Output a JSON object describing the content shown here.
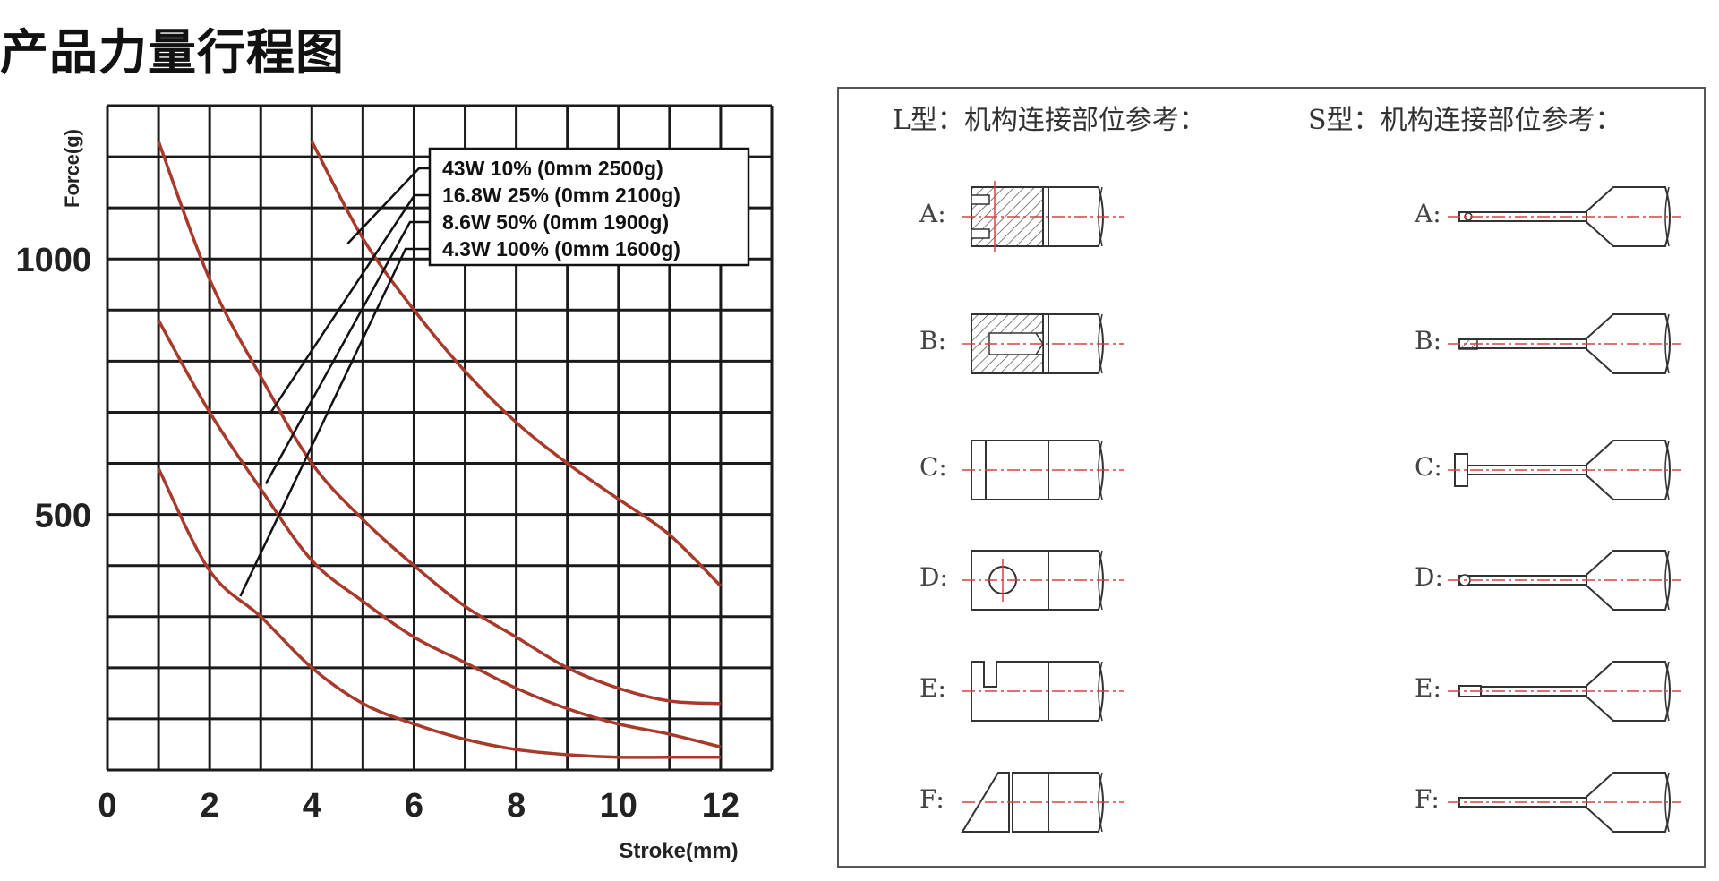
{
  "page_title": "产品力量行程图",
  "chart_data": {
    "type": "line",
    "xlabel": "Stroke(mm)",
    "ylabel": "Force(g)",
    "xlim": [
      0,
      13
    ],
    "ylim": [
      0,
      1300
    ],
    "x_ticks": [
      {
        "value": 0,
        "label": "0"
      },
      {
        "value": 2,
        "label": "2"
      },
      {
        "value": 4,
        "label": "4"
      },
      {
        "value": 6,
        "label": "6"
      },
      {
        "value": 8,
        "label": "8"
      },
      {
        "value": 10,
        "label": "10"
      },
      {
        "value": 12,
        "label": "12"
      }
    ],
    "y_ticks": [
      {
        "value": 500,
        "label": "500"
      },
      {
        "value": 1000,
        "label": "1000"
      }
    ],
    "grid": true,
    "legend_position": "top-right",
    "line_color": "#a83a2c",
    "series": [
      {
        "name": "43W 10% (0mm 2500g)",
        "x": [
          4,
          5,
          6,
          7,
          8,
          9,
          10,
          11,
          12
        ],
        "y": [
          1230,
          1040,
          900,
          780,
          680,
          600,
          530,
          460,
          360
        ]
      },
      {
        "name": "16.8W 25% (0mm 2100g)",
        "x": [
          1,
          2,
          3,
          4,
          5,
          6,
          7,
          8,
          9,
          10,
          11,
          12
        ],
        "y": [
          1230,
          960,
          770,
          600,
          490,
          400,
          320,
          260,
          200,
          160,
          135,
          130
        ]
      },
      {
        "name": "8.6W 50% (0mm 1900g)",
        "x": [
          1,
          2,
          3,
          4,
          5,
          6,
          7,
          8,
          9,
          10,
          11,
          12
        ],
        "y": [
          880,
          700,
          550,
          410,
          330,
          260,
          210,
          160,
          120,
          90,
          70,
          45
        ]
      },
      {
        "name": "4.3W 100% (0mm 1600g)",
        "x": [
          1,
          2,
          3,
          4,
          5,
          6,
          7,
          8,
          9,
          10,
          11,
          12
        ],
        "y": [
          590,
          390,
          300,
          200,
          130,
          90,
          60,
          40,
          30,
          25,
          25,
          25
        ]
      }
    ]
  },
  "reference": {
    "heading_l": "L型：机构连接部位参考：",
    "heading_s": "S型：机构连接部位参考：",
    "rows": [
      "A:",
      "B:",
      "C:",
      "D:",
      "E:",
      "F:"
    ],
    "line_color": "#d94040"
  }
}
